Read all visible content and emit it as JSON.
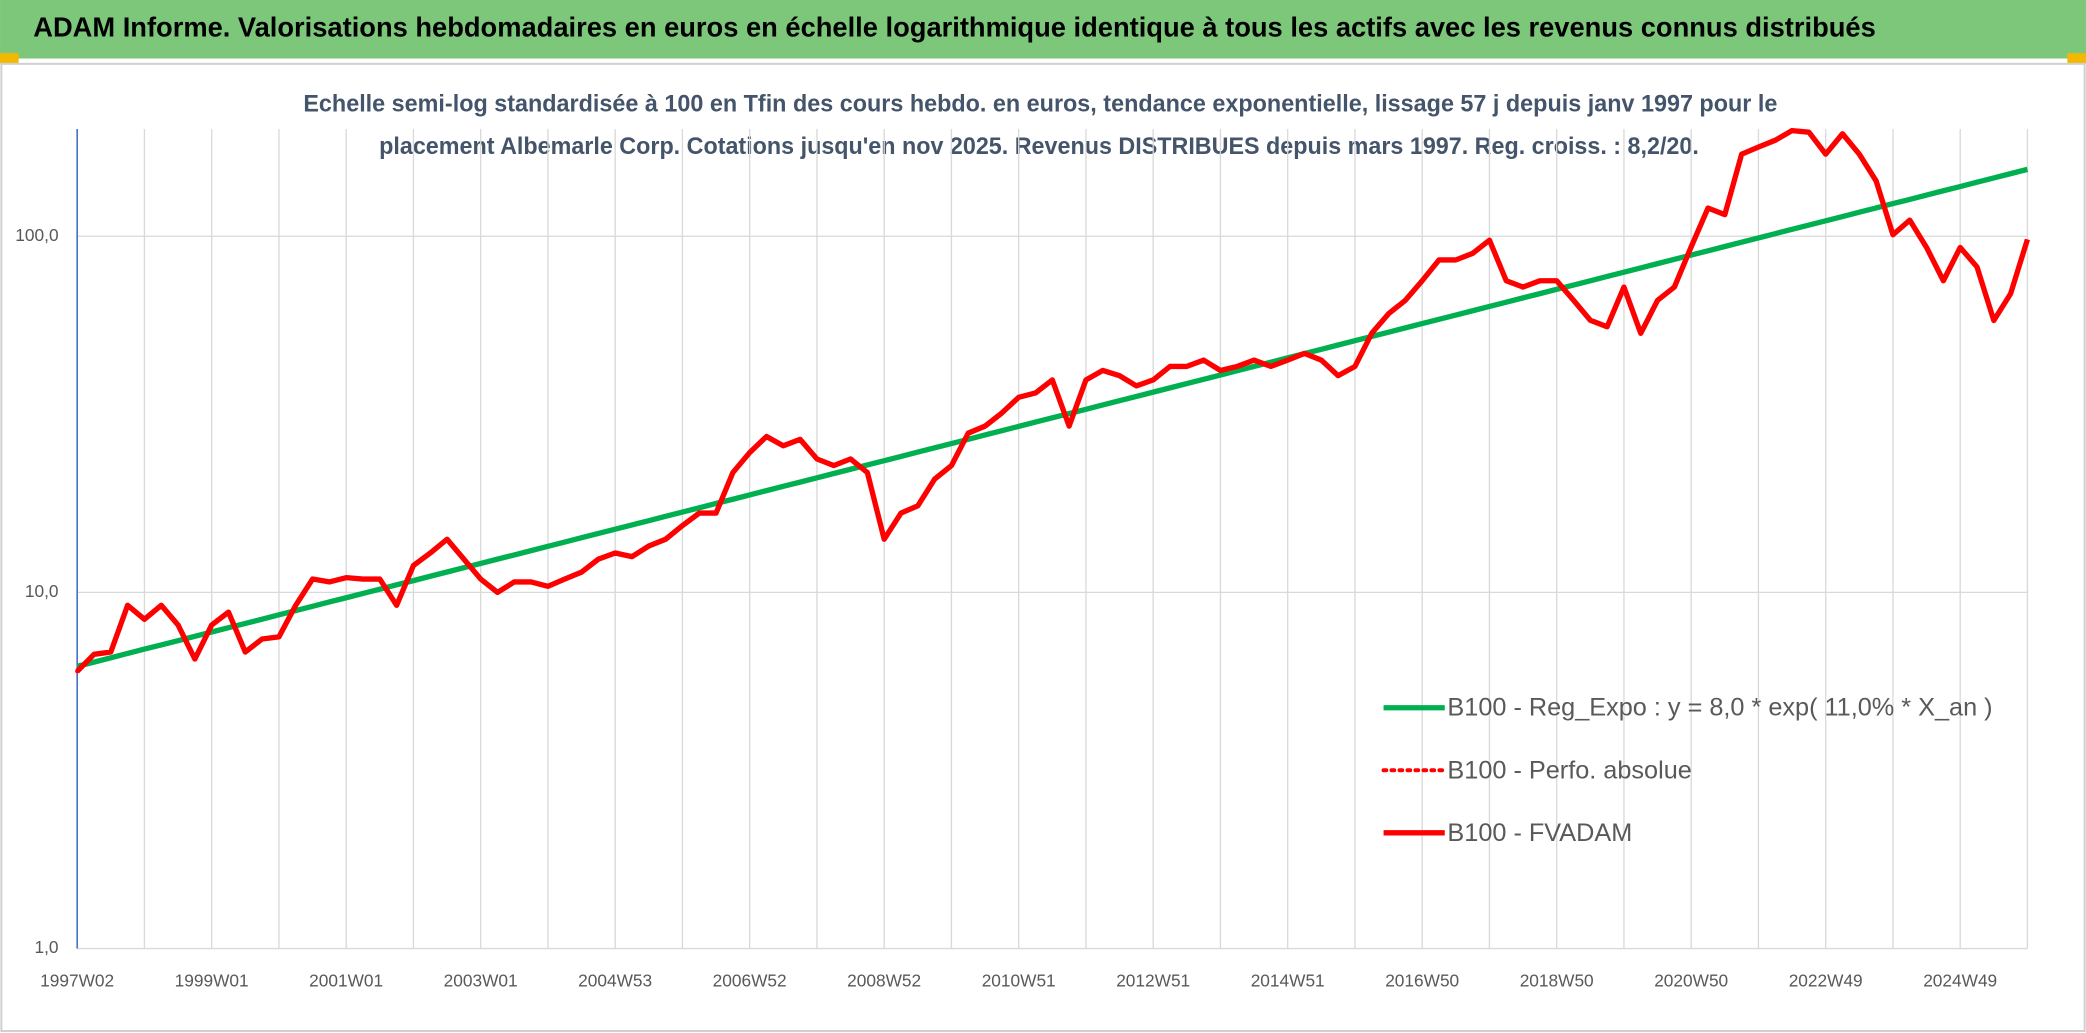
{
  "chart_data": {
    "type": "line",
    "title": "ADAM Informe. Valorisations hebdomadaires en euros en échelle logarithmique identique à tous les actifs avec les revenus connus distribués",
    "subtitle": [
      "Echelle semi-log standardisée à 100 en Tfin des cours hebdo. en euros, tendance exponentielle, lissage 57 j depuis janv 1997 pour le",
      "placement Albemarle Corp. Cotations jusqu'en nov 2025. Revenus DISTRIBUES depuis mars 1997. Reg. croiss. : 8,2/20."
    ],
    "categories": [
      "1997W02",
      null,
      null,
      null,
      null,
      null,
      null,
      null,
      "1999W01",
      null,
      null,
      null,
      null,
      null,
      null,
      null,
      "2001W01",
      null,
      null,
      null,
      null,
      null,
      null,
      null,
      "2003W01",
      null,
      null,
      null,
      null,
      null,
      null,
      null,
      "2004W53",
      null,
      null,
      null,
      null,
      null,
      null,
      null,
      "2006W52",
      null,
      null,
      null,
      null,
      null,
      null,
      null,
      "2008W52",
      null,
      null,
      null,
      null,
      null,
      null,
      null,
      "2010W51",
      null,
      null,
      null,
      null,
      null,
      null,
      null,
      "2012W51",
      null,
      null,
      null,
      null,
      null,
      null,
      null,
      "2014W51",
      null,
      null,
      null,
      null,
      null,
      null,
      null,
      "2016W50",
      null,
      null,
      null,
      null,
      null,
      null,
      null,
      "2018W50",
      null,
      null,
      null,
      null,
      null,
      null,
      null,
      "2020W50",
      null,
      null,
      null,
      null,
      null,
      null,
      null,
      "2022W49",
      null,
      null,
      null,
      null,
      null,
      null,
      null,
      "2024W49",
      null,
      null,
      null,
      null
    ],
    "yscale": "log",
    "ylim": [
      1,
      200
    ],
    "yticks": [
      {
        "value": 1,
        "label": "1,0"
      },
      {
        "value": 10,
        "label": "10,0"
      },
      {
        "value": 100,
        "label": "100,0"
      }
    ],
    "grid": true,
    "legend": "right",
    "series": [
      {
        "name": "B100 - Reg_Expo : y = 8,0 * exp( 11,0% *  X_an )",
        "color": "#00b050",
        "dash": "solid",
        "values": [
          6.2,
          6.37,
          6.55,
          6.74,
          6.93,
          7.12,
          7.32,
          7.53,
          7.74,
          7.96,
          8.18,
          8.41,
          8.65,
          8.89,
          9.14,
          9.4,
          9.66,
          9.93,
          10.21,
          10.5,
          10.79,
          11.1,
          11.41,
          11.73,
          12.06,
          12.4,
          12.74,
          13.1,
          13.47,
          13.85,
          14.24,
          14.64,
          15.05,
          15.47,
          15.9,
          16.35,
          16.81,
          17.28,
          17.77,
          18.26,
          18.78,
          19.31,
          19.85,
          20.4,
          20.98,
          21.57,
          22.17,
          22.79,
          23.43,
          24.09,
          24.77,
          25.46,
          26.18,
          26.91,
          27.67,
          28.45,
          29.25,
          30.07,
          30.91,
          31.78,
          32.67,
          33.59,
          34.53,
          35.5,
          36.5,
          37.52,
          38.58,
          39.66,
          40.77,
          41.92,
          43.1,
          44.31,
          45.55,
          46.83,
          48.15,
          49.5,
          50.89,
          52.32,
          53.79,
          55.3,
          56.85,
          58.45,
          60.09,
          61.78,
          63.51,
          65.3,
          67.13,
          69.01,
          70.95,
          72.94,
          74.99,
          77.1,
          79.26,
          81.49,
          83.78,
          86.13,
          88.55,
          91.03,
          93.59,
          96.22,
          98.92,
          101.7,
          104.6,
          107.5,
          110.5,
          113.6,
          116.8,
          120.1,
          123.5,
          126.9,
          130.5,
          134.2,
          137.9,
          141.8,
          145.8,
          149.9,
          154.1
        ]
      },
      {
        "name": "B100 - Perfo. absolue",
        "color": "#ff0000",
        "dash": "dotted",
        "values": [
          6.0,
          6.7,
          6.8,
          9.2,
          8.4,
          9.2,
          8.1,
          6.5,
          8.1,
          8.8,
          6.8,
          7.4,
          7.5,
          9.2,
          10.9,
          10.7,
          11.0,
          10.9,
          10.9,
          9.2,
          11.9,
          12.9,
          14.1,
          12.4,
          10.9,
          10.0,
          10.7,
          10.7,
          10.4,
          10.9,
          11.4,
          12.4,
          12.9,
          12.6,
          13.5,
          14.1,
          15.4,
          16.7,
          16.7,
          21.7,
          24.7,
          27.4,
          25.8,
          26.9,
          23.7,
          22.7,
          23.7,
          21.7,
          14.1,
          16.7,
          17.5,
          20.8,
          22.7,
          28.0,
          29.3,
          31.9,
          35.3,
          36.3,
          39.5,
          29.3,
          39.5,
          42.0,
          40.6,
          38.0,
          39.5,
          43.1,
          43.1,
          44.9,
          42.0,
          43.1,
          44.9,
          43.1,
          44.9,
          46.9,
          44.9,
          40.6,
          43.1,
          53.4,
          60.6,
          66.1,
          75.0,
          85.8,
          85.8,
          89.5,
          97.5,
          75.0,
          72.0,
          75.0,
          75.0,
          66.1,
          58.1,
          55.7,
          72.0,
          53.4,
          66.1,
          72.0,
          93.4,
          120,
          115,
          170,
          178,
          186,
          198,
          196,
          170,
          194,
          170,
          143,
          101,
          111,
          93,
          75,
          93,
          82,
          58,
          69,
          98
        ]
      },
      {
        "name": "B100 - FVADAM",
        "color": "#ff0000",
        "dash": "solid",
        "values": [
          6.0,
          6.7,
          6.8,
          9.2,
          8.4,
          9.2,
          8.1,
          6.5,
          8.1,
          8.8,
          6.8,
          7.4,
          7.5,
          9.2,
          10.9,
          10.7,
          11.0,
          10.9,
          10.9,
          9.2,
          11.9,
          12.9,
          14.1,
          12.4,
          10.9,
          10.0,
          10.7,
          10.7,
          10.4,
          10.9,
          11.4,
          12.4,
          12.9,
          12.6,
          13.5,
          14.1,
          15.4,
          16.7,
          16.7,
          21.7,
          24.7,
          27.4,
          25.8,
          26.9,
          23.7,
          22.7,
          23.7,
          21.7,
          14.1,
          16.7,
          17.5,
          20.8,
          22.7,
          28.0,
          29.3,
          31.9,
          35.3,
          36.3,
          39.5,
          29.3,
          39.5,
          42.0,
          40.6,
          38.0,
          39.5,
          43.1,
          43.1,
          44.9,
          42.0,
          43.1,
          44.9,
          43.1,
          44.9,
          46.9,
          44.9,
          40.6,
          43.1,
          53.4,
          60.6,
          66.1,
          75.0,
          85.8,
          85.8,
          89.5,
          97.5,
          75.0,
          72.0,
          75.0,
          75.0,
          66.1,
          58.1,
          55.7,
          72.0,
          53.4,
          66.1,
          72.0,
          93.4,
          120,
          115,
          170,
          178,
          186,
          198,
          196,
          170,
          194,
          170,
          143,
          101,
          111,
          93,
          75,
          93,
          82,
          58,
          69,
          98
        ]
      }
    ]
  }
}
